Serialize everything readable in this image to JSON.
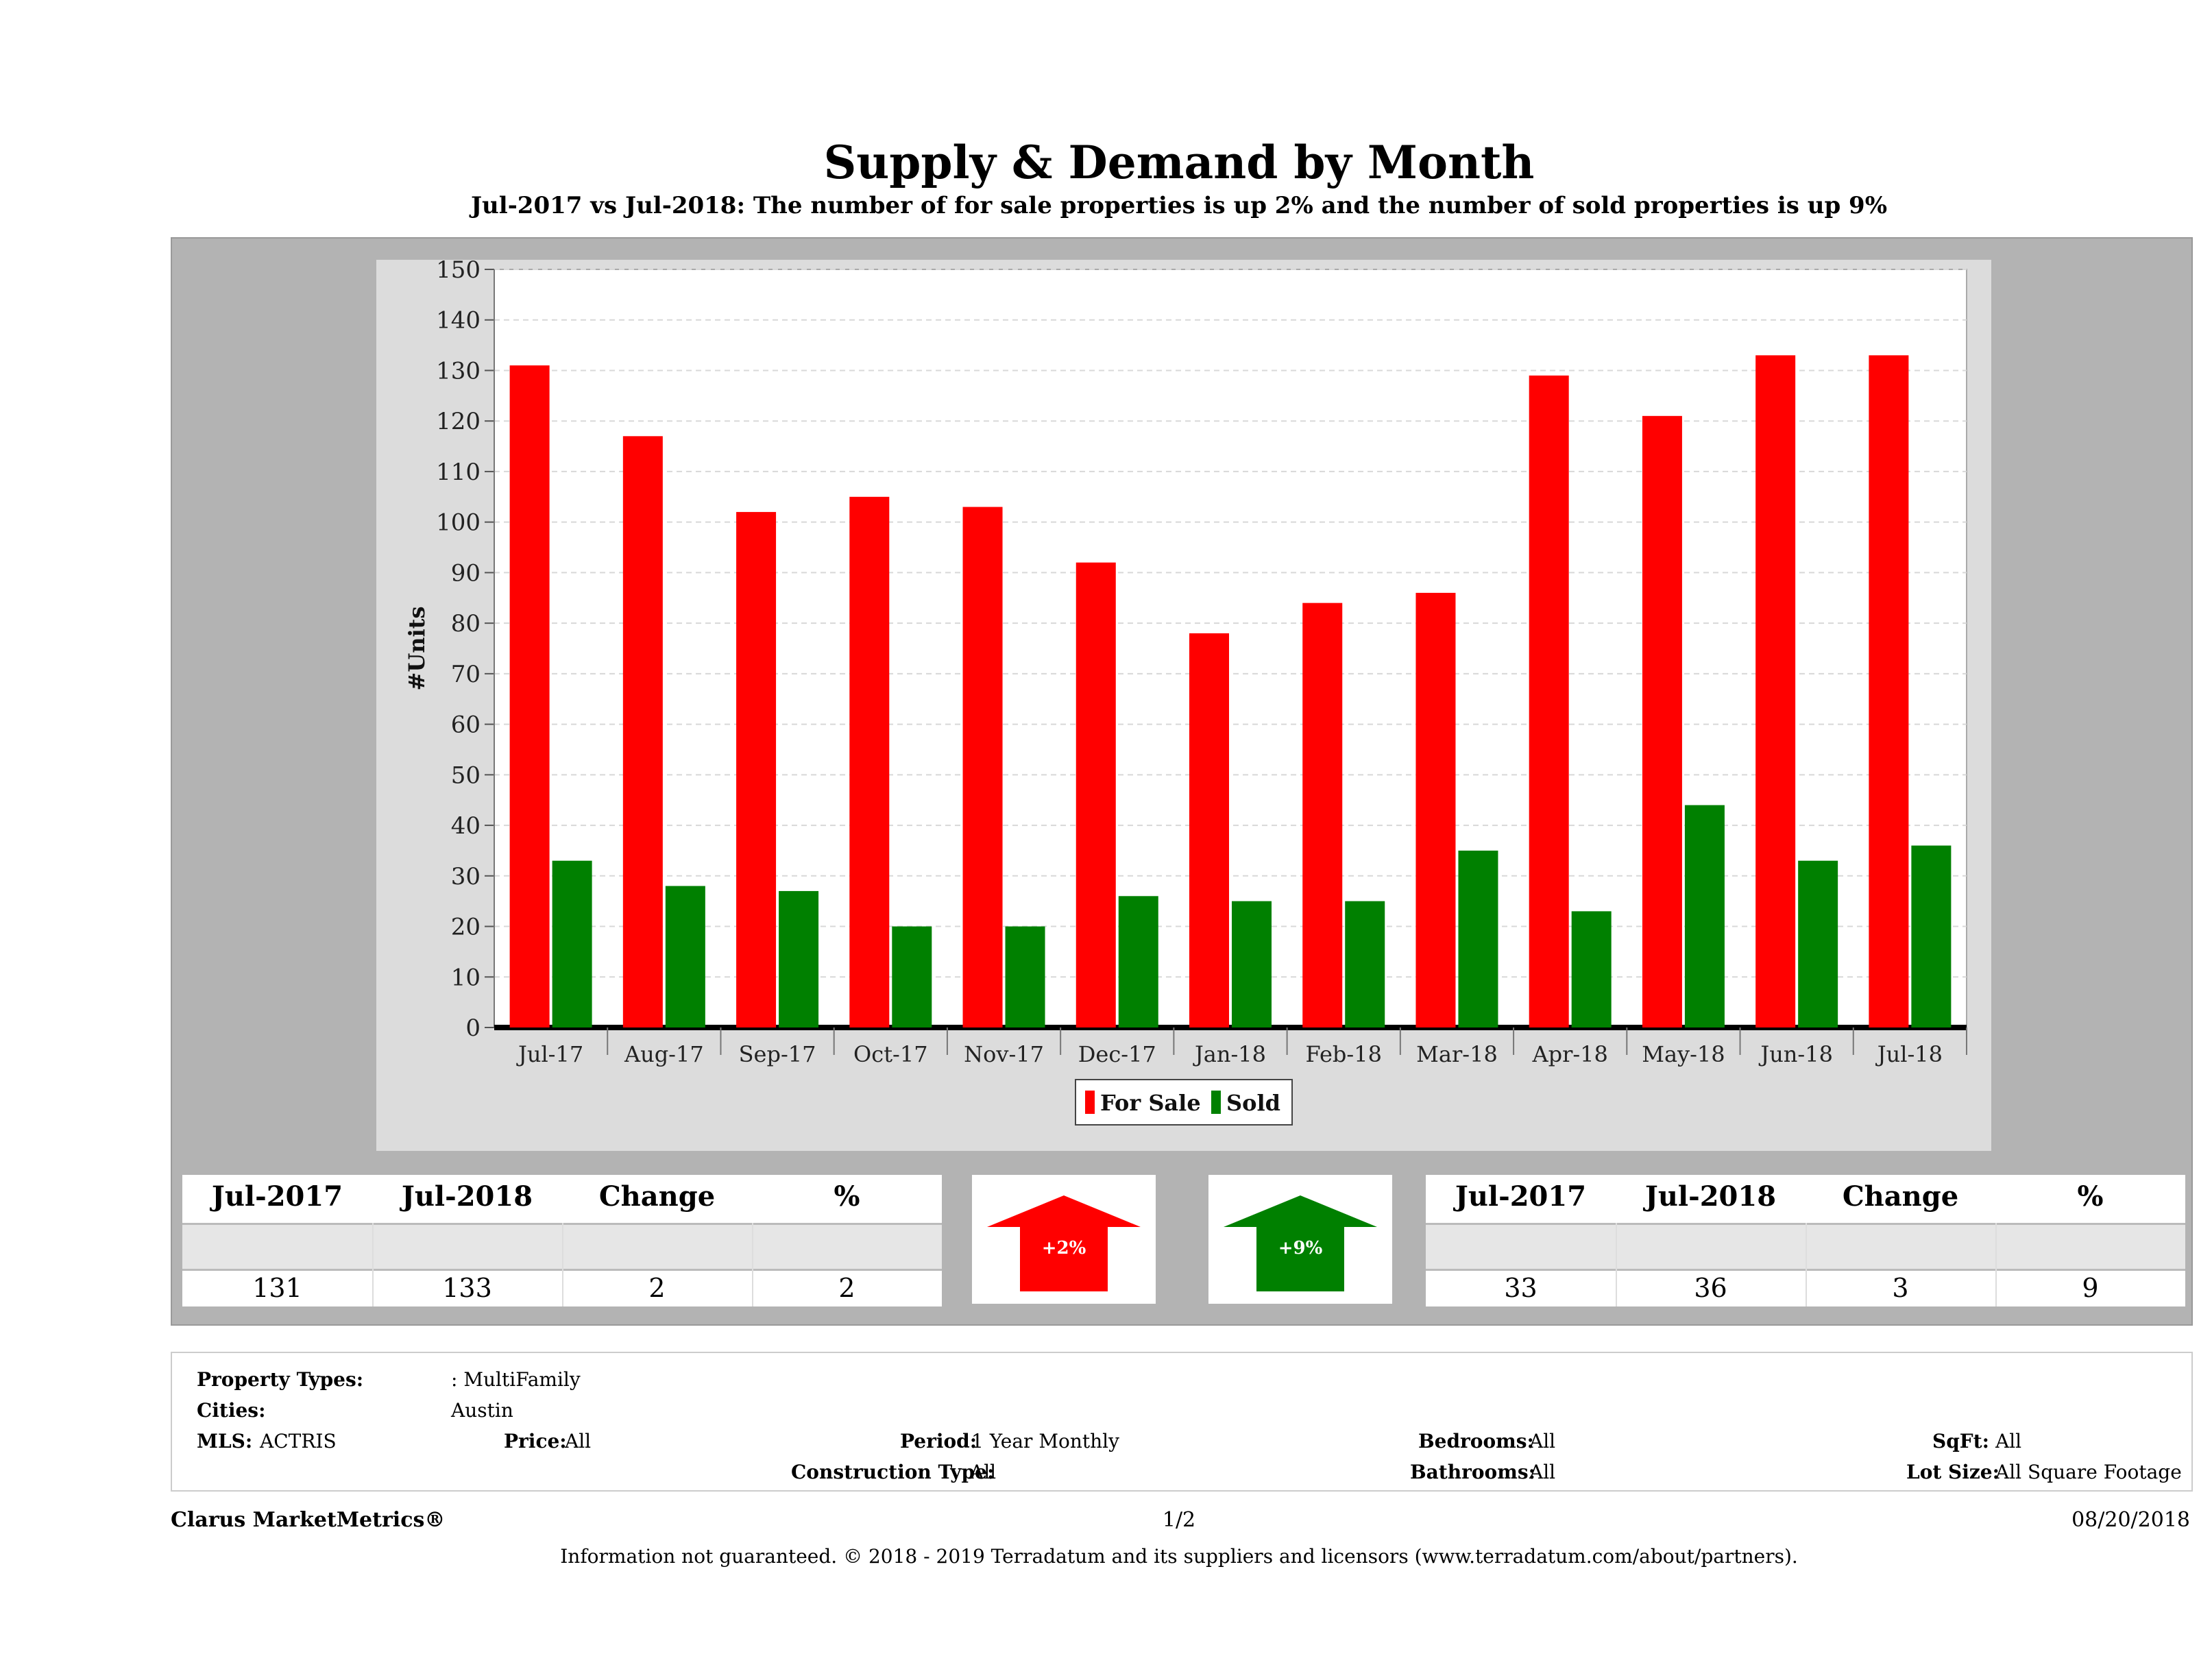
{
  "title": "Supply & Demand by Month",
  "subtitle": "Jul-2017 vs Jul-2018: The number of for sale properties is up 2% and the number of sold properties is up 9%",
  "chart_data": {
    "type": "bar",
    "ylabel": "#Units",
    "xlabel": "",
    "ylim": [
      0,
      150
    ],
    "yticks": [
      0,
      10,
      20,
      30,
      40,
      50,
      60,
      70,
      80,
      90,
      100,
      110,
      120,
      130,
      140,
      150
    ],
    "categories": [
      "Jul-17",
      "Aug-17",
      "Sep-17",
      "Oct-17",
      "Nov-17",
      "Dec-17",
      "Jan-18",
      "Feb-18",
      "Mar-18",
      "Apr-18",
      "May-18",
      "Jun-18",
      "Jul-18"
    ],
    "series": [
      {
        "name": "For Sale",
        "color": "#ff0000",
        "values": [
          131,
          117,
          102,
          105,
          103,
          92,
          78,
          84,
          86,
          129,
          121,
          133,
          133
        ]
      },
      {
        "name": "Sold",
        "color": "#008000",
        "values": [
          33,
          28,
          27,
          20,
          20,
          26,
          25,
          25,
          35,
          23,
          44,
          33,
          36
        ]
      }
    ],
    "grid": true,
    "legend": "bottom-center"
  },
  "for_sale_table": {
    "headers": [
      "Jul-2017",
      "Jul-2018",
      "Change",
      "%"
    ],
    "values": [
      "131",
      "133",
      "2",
      "2"
    ]
  },
  "sold_table": {
    "headers": [
      "Jul-2017",
      "Jul-2018",
      "Change",
      "%"
    ],
    "values": [
      "33",
      "36",
      "3",
      "9"
    ]
  },
  "indicators": {
    "for_sale": {
      "label": "+2%",
      "direction": "up",
      "color": "#ff0000"
    },
    "sold": {
      "label": "+9%",
      "direction": "up",
      "color": "#008000"
    }
  },
  "info": {
    "property_types_label": "Property Types:",
    "property_types_value": ": MultiFamily",
    "cities_label": "Cities:",
    "cities_value": "Austin",
    "mls_label": "MLS:",
    "mls_value": "ACTRIS",
    "price_label": "Price:",
    "price_value": "All",
    "period_label": "Period:",
    "period_value": "1 Year Monthly",
    "construction_label": "Construction Type:",
    "construction_value": "All",
    "bedrooms_label": "Bedrooms:",
    "bedrooms_value": "All",
    "bathrooms_label": "Bathrooms:",
    "bathrooms_value": "All",
    "sqft_label": "SqFt:",
    "sqft_value": "All",
    "lotsize_label": "Lot Size:",
    "lotsize_value": "All Square Footage"
  },
  "footer": {
    "brand": "Clarus MarketMetrics®",
    "page": "1/2",
    "date": "08/20/2018",
    "disclaimer": "Information not guaranteed. © 2018 - 2019 Terradatum and its suppliers and licensors (www.terradatum.com/about/partners)."
  }
}
